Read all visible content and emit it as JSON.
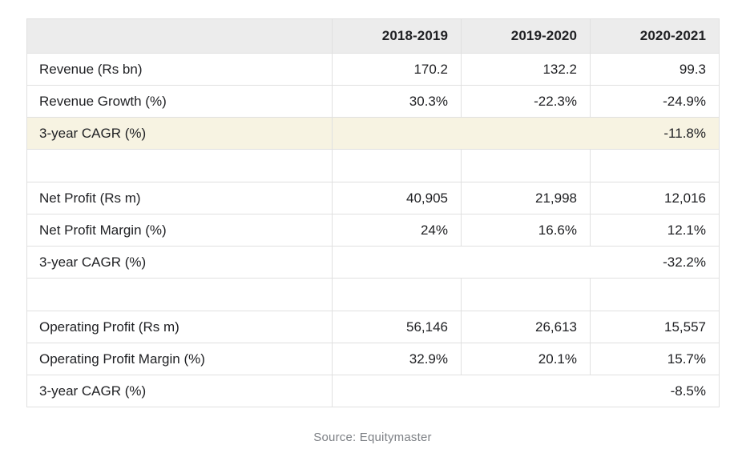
{
  "colors": {
    "border": "#e0e0e0",
    "header_bg": "#ececec",
    "highlight_bg": "#f7f3e2",
    "text": "#202124",
    "source_text": "#7d8085",
    "page_bg": "#ffffff"
  },
  "table": {
    "columns": [
      "2018-2019",
      "2019-2020",
      "2020-2021"
    ],
    "rows": [
      {
        "type": "data",
        "label": "Revenue (Rs bn)",
        "values": [
          "170.2",
          "132.2",
          "99.3"
        ]
      },
      {
        "type": "data",
        "label": "Revenue Growth (%)",
        "values": [
          "30.3%",
          "-22.3%",
          "-24.9%"
        ]
      },
      {
        "type": "cagr",
        "label": "3-year CAGR (%)",
        "value": "-11.8%",
        "highlight": true
      },
      {
        "type": "spacer"
      },
      {
        "type": "data",
        "label": "Net Profit (Rs m)",
        "values": [
          "40,905",
          "21,998",
          "12,016"
        ]
      },
      {
        "type": "data",
        "label": "Net Profit Margin (%)",
        "values": [
          "24%",
          "16.6%",
          "12.1%"
        ]
      },
      {
        "type": "cagr",
        "label": "3-year CAGR (%)",
        "value": "-32.2%",
        "highlight": false
      },
      {
        "type": "spacer"
      },
      {
        "type": "data",
        "label": "Operating Profit (Rs m)",
        "values": [
          "56,146",
          "26,613",
          "15,557"
        ]
      },
      {
        "type": "data",
        "label": "Operating Profit Margin (%)",
        "values": [
          "32.9%",
          "20.1%",
          "15.7%"
        ]
      },
      {
        "type": "cagr",
        "label": "3-year CAGR (%)",
        "value": "-8.5%",
        "highlight": false
      }
    ]
  },
  "footer": {
    "source_label": "Source: Equitymaster"
  },
  "chart_data": {
    "type": "table",
    "title": "",
    "categories": [
      "2018-2019",
      "2019-2020",
      "2020-2021"
    ],
    "series": [
      {
        "name": "Revenue (Rs bn)",
        "values": [
          170.2,
          132.2,
          99.3
        ]
      },
      {
        "name": "Revenue Growth (%)",
        "values": [
          30.3,
          -22.3,
          -24.9
        ]
      },
      {
        "name": "3-year CAGR (%) [Revenue]",
        "values": [
          null,
          null,
          -11.8
        ]
      },
      {
        "name": "Net Profit (Rs m)",
        "values": [
          40905,
          21998,
          12016
        ]
      },
      {
        "name": "Net Profit Margin (%)",
        "values": [
          24,
          16.6,
          12.1
        ]
      },
      {
        "name": "3-year CAGR (%) [Net Profit]",
        "values": [
          null,
          null,
          -32.2
        ]
      },
      {
        "name": "Operating Profit (Rs m)",
        "values": [
          56146,
          26613,
          15557
        ]
      },
      {
        "name": "Operating Profit Margin (%)",
        "values": [
          32.9,
          20.1,
          15.7
        ]
      },
      {
        "name": "3-year CAGR (%) [Operating Profit]",
        "values": [
          null,
          null,
          -8.5
        ]
      }
    ],
    "legend_position": "none",
    "grid": true,
    "source": "Source: Equitymaster"
  }
}
